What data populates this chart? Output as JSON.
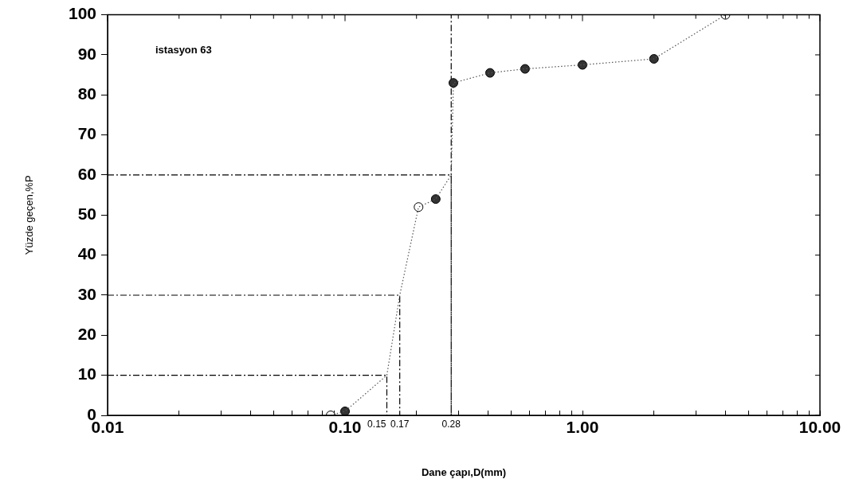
{
  "chart_data": {
    "type": "line",
    "xlabel": "Dane çapı,D(mm)",
    "ylabel": "Yüzde geçen,%P",
    "log": "x",
    "xlim": [
      0.01,
      10
    ],
    "ylim": [
      0,
      100
    ],
    "xticks": [
      {
        "value": 0.01,
        "label": "0.01"
      },
      {
        "value": 0.02,
        "label": null
      },
      {
        "value": 0.03,
        "label": null
      },
      {
        "value": 0.04,
        "label": null
      },
      {
        "value": 0.05,
        "label": null
      },
      {
        "value": 0.06,
        "label": null
      },
      {
        "value": 0.07,
        "label": null
      },
      {
        "value": 0.08,
        "label": null
      },
      {
        "value": 0.09,
        "label": null
      },
      {
        "value": 0.1,
        "label": "0.10"
      },
      {
        "value": 0.2,
        "label": null
      },
      {
        "value": 0.3,
        "label": null
      },
      {
        "value": 0.4,
        "label": null
      },
      {
        "value": 0.5,
        "label": null
      },
      {
        "value": 0.6,
        "label": null
      },
      {
        "value": 0.7,
        "label": null
      },
      {
        "value": 0.8,
        "label": null
      },
      {
        "value": 0.9,
        "label": null
      },
      {
        "value": 1,
        "label": "1.00"
      },
      {
        "value": 2,
        "label": null
      },
      {
        "value": 3,
        "label": null
      },
      {
        "value": 4,
        "label": null
      },
      {
        "value": 5,
        "label": null
      },
      {
        "value": 6,
        "label": null
      },
      {
        "value": 7,
        "label": null
      },
      {
        "value": 8,
        "label": null
      },
      {
        "value": 9,
        "label": null
      },
      {
        "value": 10,
        "label": "10.00"
      }
    ],
    "yticks": [
      0,
      10,
      20,
      30,
      40,
      50,
      60,
      70,
      80,
      90,
      100
    ],
    "grid": false,
    "legend": false,
    "series": [
      {
        "marker": "none",
        "line_style": "dotted",
        "color": "#555555",
        "x": [
          0.087,
          0.1,
          0.15,
          0.17,
          0.204,
          0.241,
          0.28,
          0.286,
          0.408,
          0.573,
          1.0,
          2.0,
          4.0
        ],
        "values": [
          0,
          1,
          10,
          30,
          52,
          54,
          60,
          83,
          85.5,
          86.5,
          87.5,
          89,
          100
        ]
      },
      {
        "type": "scatter",
        "marker": "circle",
        "color": "#000000",
        "colors": [
          "#ffffff",
          "#333333",
          "#ffffff",
          "#333333",
          "#333333",
          "#333333",
          "#333333",
          "#333333",
          "#333333",
          "#ffffff"
        ],
        "x": [
          0.087,
          0.1,
          0.204,
          0.241,
          0.286,
          0.408,
          0.573,
          1.0,
          2.0,
          4.0
        ],
        "values": [
          0,
          1,
          52,
          54,
          83,
          85.5,
          86.5,
          87.5,
          89,
          100
        ]
      },
      {
        "marker": "none",
        "line_style": "dashed",
        "color": "#000000",
        "x": [
          0.01,
          0.15,
          0.15
        ],
        "values": [
          10,
          10,
          0
        ]
      },
      {
        "marker": "none",
        "line_style": "dashed",
        "color": "#000000",
        "x": [
          0.01,
          0.17,
          0.17
        ],
        "values": [
          30,
          30,
          0
        ]
      },
      {
        "marker": "none",
        "line_style": "dashed",
        "color": "#000000",
        "x": [
          0.01,
          0.28,
          0.28,
          0.28
        ],
        "values": [
          60,
          60,
          0,
          100
        ]
      }
    ],
    "annotations": [
      "istasyon 63",
      {
        "text": "0.15",
        "x": 0.15,
        "y": 0
      },
      {
        "text": "0.17",
        "x": 0.17,
        "y": 0
      },
      {
        "text": "0.28",
        "x": 0.28,
        "y": 0
      }
    ]
  }
}
